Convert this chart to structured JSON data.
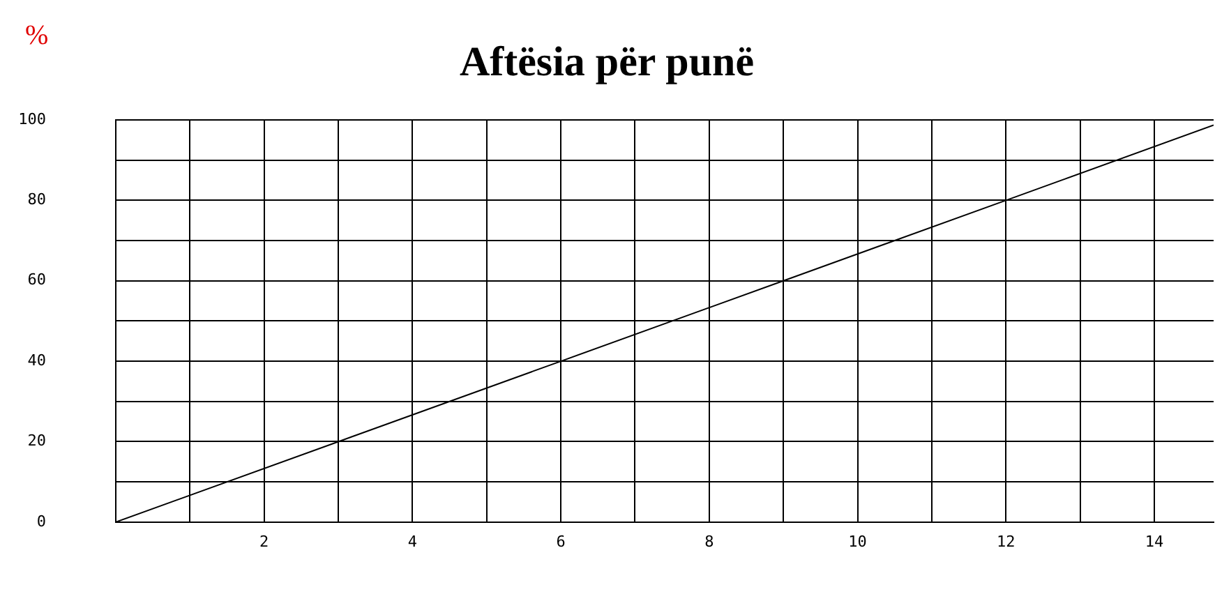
{
  "chart_data": {
    "type": "line",
    "title": "Aftësia për punë",
    "ylabel": "%",
    "series": [
      {
        "color": "#000000",
        "x": [
          0,
          3,
          6,
          9,
          12,
          14.8
        ],
        "values": [
          0,
          20,
          40,
          60,
          80,
          98.7
        ]
      }
    ],
    "xlim": [
      0,
      14.8
    ],
    "xticks": [
      {
        "value": 0,
        "label": null
      },
      {
        "value": 1,
        "label": null
      },
      2,
      {
        "value": 3,
        "label": null
      },
      4,
      {
        "value": 5,
        "label": null
      },
      6,
      {
        "value": 7,
        "label": null
      },
      8,
      {
        "value": 9,
        "label": null
      },
      10,
      {
        "value": 11,
        "label": null
      },
      12,
      {
        "value": 13,
        "label": null
      },
      14
    ],
    "ylim": [
      0,
      100
    ],
    "yticks": [
      0,
      {
        "value": 10,
        "label": null
      },
      20,
      {
        "value": 30,
        "label": null
      },
      40,
      {
        "value": 50,
        "label": null
      },
      60,
      {
        "value": 70,
        "label": null
      },
      80,
      {
        "value": 90,
        "label": null
      },
      100
    ],
    "grid": true,
    "legend": false,
    "marker": "none",
    "line_style": "solid"
  }
}
